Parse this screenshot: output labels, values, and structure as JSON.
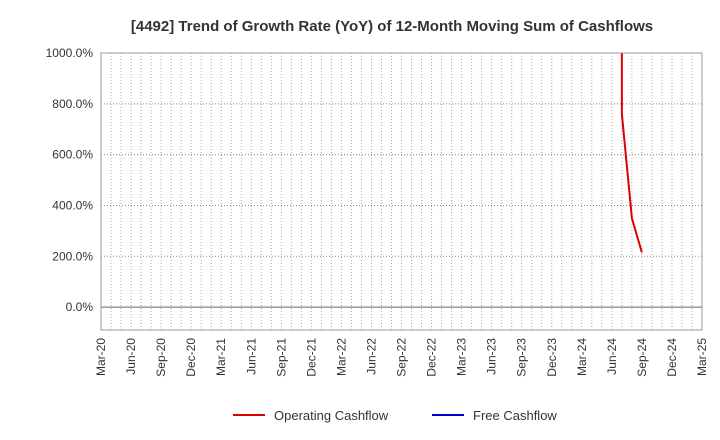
{
  "chart_data": {
    "type": "line",
    "title": "[4492]  Trend of Growth Rate (YoY) of 12-Month Moving Sum of Cashflows",
    "xlabel": "",
    "ylabel": "",
    "ylim": [
      -90,
      1000
    ],
    "yticks": [
      0,
      200,
      400,
      600,
      800,
      1000
    ],
    "ytick_labels": [
      "0.0%",
      "200.0%",
      "400.0%",
      "600.0%",
      "800.0%",
      "1000.0%"
    ],
    "x_range": [
      "2020-03",
      "2025-03"
    ],
    "xtick_labels": [
      "Mar-20",
      "Jun-20",
      "Sep-20",
      "Dec-20",
      "Mar-21",
      "Jun-21",
      "Sep-21",
      "Dec-21",
      "Mar-22",
      "Jun-22",
      "Sep-22",
      "Dec-22",
      "Mar-23",
      "Jun-23",
      "Sep-23",
      "Dec-23",
      "Mar-24",
      "Jun-24",
      "Sep-24",
      "Dec-24",
      "Mar-25"
    ],
    "grid": true,
    "legend_position": "bottom",
    "series": [
      {
        "name": "Operating Cashflow",
        "color": "#dd0000",
        "points": [
          {
            "x": "2024-07",
            "y": 1000
          },
          {
            "x": "2024-07",
            "y": 760
          },
          {
            "x": "2024-08",
            "y": 350
          },
          {
            "x": "2024-09",
            "y": 215
          }
        ]
      },
      {
        "name": "Free Cashflow",
        "color": "#0000cc",
        "points": []
      }
    ]
  }
}
